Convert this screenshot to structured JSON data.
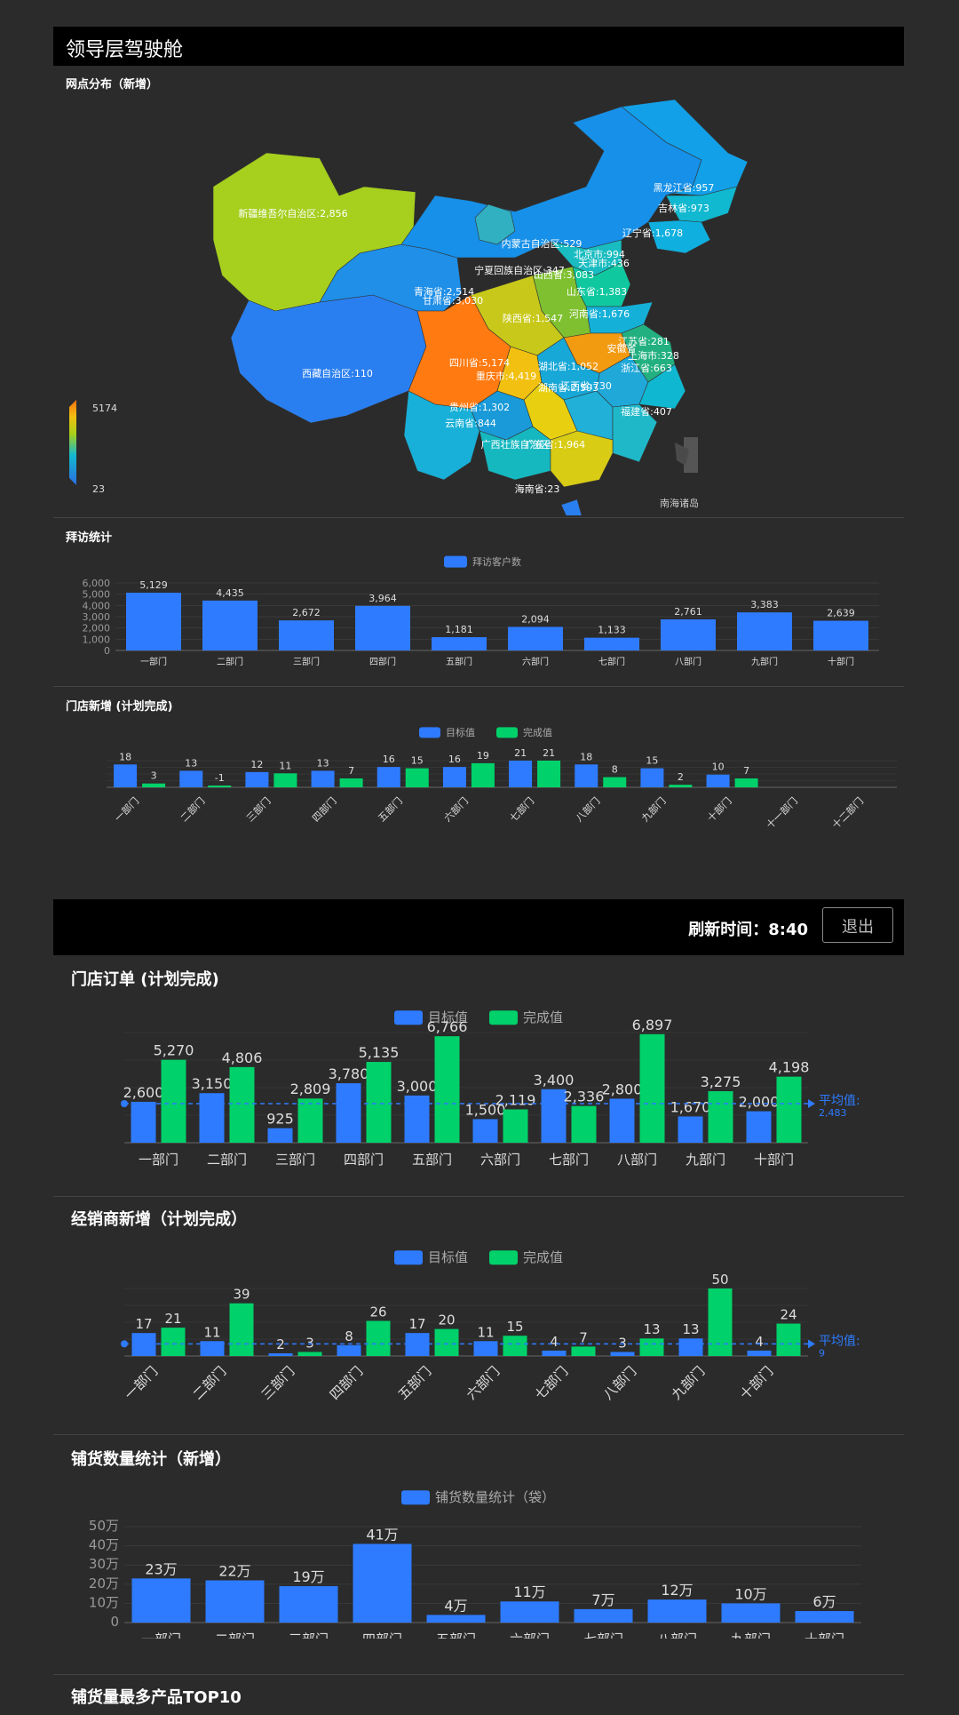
{
  "header": {
    "title": "领导层驾驶舱"
  },
  "map": {
    "title": "网点分布（新增）",
    "visual_map": {
      "max": "5174",
      "min": "23"
    },
    "south_sea_label": "南海诸岛",
    "provinces": [
      {
        "label": "新疆维吾尔自治区:2,856"
      },
      {
        "label": "西藏自治区:110"
      },
      {
        "label": "黑龙江省:957"
      },
      {
        "label": "吉林省:973"
      },
      {
        "label": "辽宁省:1,678"
      },
      {
        "label": "内蒙古自治区:529"
      },
      {
        "label": "北京市:994"
      },
      {
        "label": "天津市:436"
      },
      {
        "label": "宁夏回族自治区:347"
      },
      {
        "label": "山西省:3,083"
      },
      {
        "label": "青海省:2,514"
      },
      {
        "label": "甘肃省:3,030"
      },
      {
        "label": "山东省:1,383"
      },
      {
        "label": "河南省:1,676"
      },
      {
        "label": "陕西省:1,547"
      },
      {
        "label": "江苏省:281"
      },
      {
        "label": "安徽省"
      },
      {
        "label": "上海市:328"
      },
      {
        "label": "浙江省:663"
      },
      {
        "label": "四川省:5,174"
      },
      {
        "label": "重庆市:4,419"
      },
      {
        "label": "湖北省:1,052"
      },
      {
        "label": "湖南省:2,593"
      },
      {
        "label": "江西省:730"
      },
      {
        "label": "贵州省:1,302"
      },
      {
        "label": "云南省:844"
      },
      {
        "label": "福建省:407"
      },
      {
        "label": "广西壮族自治区"
      },
      {
        "label": "广东省:1,964"
      },
      {
        "label": "海南省:23"
      }
    ]
  },
  "visit": {
    "title": "拜访统计",
    "chart_data": {
      "type": "bar",
      "categories": [
        "一部门",
        "二部门",
        "三部门",
        "四部门",
        "五部门",
        "六部门",
        "七部门",
        "八部门",
        "九部门",
        "十部门"
      ],
      "series": [
        {
          "name": "拜访客户数",
          "values": [
            5129,
            4435,
            2672,
            3964,
            1181,
            2094,
            1133,
            2761,
            3383,
            2639
          ],
          "labels": [
            "5,129",
            "4,435",
            "2,672",
            "3,964",
            "1,181",
            "2,094",
            "1,133",
            "2,761",
            "3,383",
            "2,639"
          ]
        }
      ],
      "yticks": [
        "0",
        "1,000",
        "2,000",
        "3,000",
        "4,000",
        "5,000",
        "6,000"
      ],
      "ylim": [
        0,
        6000
      ]
    }
  },
  "store_new": {
    "title": "门店新增 (计划完成)",
    "chart_data": {
      "type": "bar",
      "categories": [
        "一部门",
        "二部门",
        "三部门",
        "四部门",
        "五部门",
        "六部门",
        "七部门",
        "八部门",
        "九部门",
        "十部门",
        "十一部门",
        "十二部门"
      ],
      "series": [
        {
          "name": "目标值",
          "values": [
            18,
            13,
            12,
            13,
            16,
            16,
            21,
            18,
            15,
            10,
            null,
            null
          ]
        },
        {
          "name": "完成值",
          "values": [
            3,
            -1,
            11,
            7,
            15,
            19,
            21,
            8,
            2,
            7,
            null,
            null
          ]
        }
      ],
      "ylim": [
        0,
        21
      ]
    }
  },
  "topbar": {
    "refresh_label": "刷新时间：",
    "refresh_time": "8:40",
    "logout_label": "退出"
  },
  "store_order": {
    "title": "门店订单 (计划完成)",
    "chart_data": {
      "type": "bar",
      "categories": [
        "一部门",
        "二部门",
        "三部门",
        "四部门",
        "五部门",
        "六部门",
        "七部门",
        "八部门",
        "九部门",
        "十部门"
      ],
      "series": [
        {
          "name": "目标值",
          "values": [
            2600,
            3150,
            925,
            3780,
            3000,
            1500,
            3400,
            2800,
            1670,
            2000
          ],
          "labels": [
            "2,600",
            "3,150",
            "925",
            "3,780",
            "3,000",
            "1,500",
            "3,400",
            "2,800",
            "1,670",
            "2,000"
          ]
        },
        {
          "name": "完成值",
          "values": [
            5270,
            4806,
            2809,
            5135,
            6766,
            2119,
            2336,
            6897,
            3275,
            4198
          ],
          "labels": [
            "5,270",
            "4,806",
            "2,809",
            "5,135",
            "6,766",
            "2,119",
            "2,336",
            "6,897",
            "3,275",
            "4,198"
          ]
        }
      ],
      "avg_label": "平均值:",
      "avg_value": "2,483",
      "avg": 2483,
      "ylim": [
        0,
        7000
      ]
    }
  },
  "dealer_new": {
    "title": "经销商新增（计划完成）",
    "chart_data": {
      "type": "bar",
      "categories": [
        "一部门",
        "二部门",
        "三部门",
        "四部门",
        "五部门",
        "六部门",
        "七部门",
        "八部门",
        "九部门",
        "十部门"
      ],
      "series": [
        {
          "name": "目标值",
          "values": [
            17,
            11,
            2,
            8,
            17,
            11,
            4,
            3,
            13,
            4
          ]
        },
        {
          "name": "完成值",
          "values": [
            21,
            39,
            3,
            26,
            20,
            15,
            7,
            13,
            50,
            24
          ]
        }
      ],
      "avg_label": "平均值:",
      "avg_value": "9",
      "avg": 9,
      "ylim": [
        0,
        50
      ]
    }
  },
  "stock": {
    "title": "铺货数量统计（新增）",
    "chart_data": {
      "type": "bar",
      "categories": [
        "一部门",
        "二部门",
        "三部门",
        "四部门",
        "五部门",
        "六部门",
        "七部门",
        "八部门",
        "九部门",
        "十部门"
      ],
      "series": [
        {
          "name": "铺货数量统计（袋）",
          "values": [
            23,
            22,
            19,
            41,
            4,
            11,
            7,
            12,
            10,
            6
          ],
          "labels": [
            "23万",
            "22万",
            "19万",
            "41万",
            "4万",
            "11万",
            "7万",
            "12万",
            "10万",
            "6万"
          ]
        }
      ],
      "yticks": [
        "0",
        "10万",
        "20万",
        "30万",
        "40万",
        "50万"
      ],
      "ylim": [
        0,
        50
      ]
    }
  },
  "top10": {
    "title": "铺货量最多产品TOP10"
  },
  "colors": {
    "target": "#2e7bff",
    "done": "#00d16a",
    "bg": "#2b2b2b"
  }
}
